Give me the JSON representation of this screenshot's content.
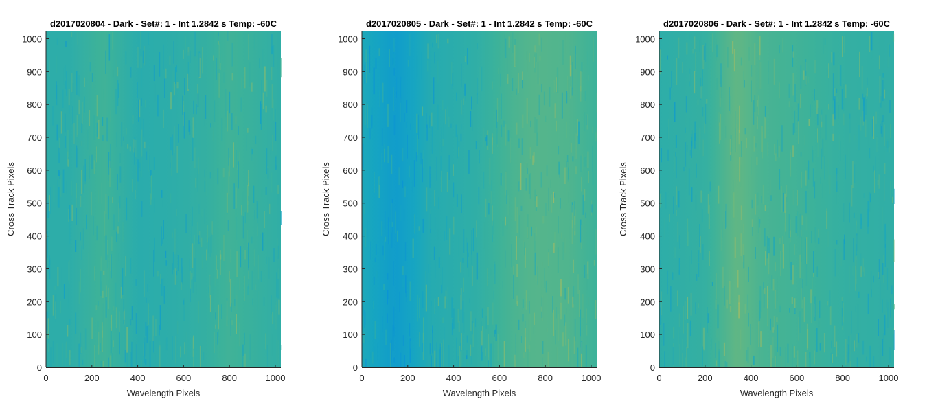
{
  "figure": {
    "panels": [
      {
        "title": "d2017020804 - Dark - Set#: 1 - Int 1.2842 s Temp: -60C",
        "xlabel": "Wavelength Pixels",
        "ylabel": "Cross Track Pixels"
      },
      {
        "title": "d2017020805 - Dark - Set#: 1 - Int 1.2842 s Temp: -60C",
        "xlabel": "Wavelength Pixels",
        "ylabel": "Cross Track Pixels"
      },
      {
        "title": "d2017020806 - Dark - Set#: 1 - Int 1.2842 s Temp: -60C",
        "xlabel": "Wavelength Pixels",
        "ylabel": "Cross Track Pixels"
      }
    ]
  },
  "chart_data": [
    {
      "type": "heatmap",
      "title": "d2017020804 - Dark - Set#: 1 - Int 1.2842 s Temp: -60C",
      "xlabel": "Wavelength Pixels",
      "ylabel": "Cross Track Pixels",
      "xlim": [
        0,
        1024
      ],
      "ylim": [
        0,
        1024
      ],
      "xticks": [
        0,
        200,
        400,
        600,
        800,
        1000
      ],
      "yticks": [
        0,
        100,
        200,
        300,
        400,
        500,
        600,
        700,
        800,
        900,
        1000
      ],
      "colormap": [
        "#0a93d6",
        "#17a6c0",
        "#3cb29a",
        "#7bba75",
        "#b5bd5e"
      ],
      "column_profile": [
        {
          "x": 0,
          "level": 0.4
        },
        {
          "x": 100,
          "level": 0.4
        },
        {
          "x": 250,
          "level": 0.52
        },
        {
          "x": 400,
          "level": 0.38
        },
        {
          "x": 550,
          "level": 0.4
        },
        {
          "x": 700,
          "level": 0.45
        },
        {
          "x": 800,
          "level": 0.52
        },
        {
          "x": 1024,
          "level": 0.42
        }
      ],
      "grid": false
    },
    {
      "type": "heatmap",
      "title": "d2017020805 - Dark - Set#: 1 - Int 1.2842 s Temp: -60C",
      "xlabel": "Wavelength Pixels",
      "ylabel": "Cross Track Pixels",
      "xlim": [
        0,
        1024
      ],
      "ylim": [
        0,
        1024
      ],
      "xticks": [
        0,
        200,
        400,
        600,
        800,
        1000
      ],
      "yticks": [
        0,
        100,
        200,
        300,
        400,
        500,
        600,
        700,
        800,
        900,
        1000
      ],
      "colormap": [
        "#0a93d6",
        "#17a6c0",
        "#3cb29a",
        "#7bba75",
        "#b5bd5e"
      ],
      "column_profile": [
        {
          "x": 0,
          "level": 0.3
        },
        {
          "x": 150,
          "level": 0.12
        },
        {
          "x": 300,
          "level": 0.35
        },
        {
          "x": 500,
          "level": 0.42
        },
        {
          "x": 650,
          "level": 0.55
        },
        {
          "x": 750,
          "level": 0.6
        },
        {
          "x": 900,
          "level": 0.58
        },
        {
          "x": 1024,
          "level": 0.5
        }
      ],
      "grid": false
    },
    {
      "type": "heatmap",
      "title": "d2017020806 - Dark - Set#: 1 - Int 1.2842 s Temp: -60C",
      "xlabel": "Wavelength Pixels",
      "ylabel": "Cross Track Pixels",
      "xlim": [
        0,
        1024
      ],
      "ylim": [
        0,
        1024
      ],
      "xticks": [
        0,
        200,
        400,
        600,
        800,
        1000
      ],
      "yticks": [
        0,
        100,
        200,
        300,
        400,
        500,
        600,
        700,
        800,
        900,
        1000
      ],
      "colormap": [
        "#0a93d6",
        "#17a6c0",
        "#3cb29a",
        "#7bba75",
        "#b5bd5e"
      ],
      "column_profile": [
        {
          "x": 0,
          "level": 0.4
        },
        {
          "x": 200,
          "level": 0.45
        },
        {
          "x": 340,
          "level": 0.65
        },
        {
          "x": 450,
          "level": 0.55
        },
        {
          "x": 600,
          "level": 0.52
        },
        {
          "x": 800,
          "level": 0.45
        },
        {
          "x": 1024,
          "level": 0.42
        }
      ],
      "grid": false
    }
  ]
}
